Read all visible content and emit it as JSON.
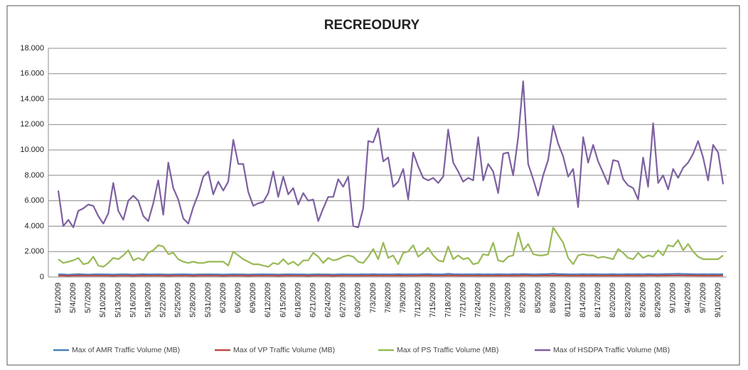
{
  "chart_data": {
    "type": "line",
    "title": "RECREODURY",
    "categories": [
      "5/1/2009",
      null,
      null,
      "5/4/2009",
      null,
      null,
      "5/7/2009",
      null,
      null,
      "5/10/2009",
      null,
      null,
      "5/13/2009",
      null,
      null,
      "5/16/2009",
      null,
      null,
      "5/19/2009",
      null,
      null,
      "5/22/2009",
      null,
      null,
      "5/25/2009",
      null,
      null,
      "5/28/2009",
      null,
      null,
      "5/31/2009",
      null,
      null,
      "6/3/2009",
      null,
      null,
      "6/6/2009",
      null,
      null,
      "6/9/2009",
      null,
      null,
      "6/12/2009",
      null,
      null,
      "6/15/2009",
      null,
      null,
      "6/18/2009",
      null,
      null,
      "6/21/2009",
      null,
      null,
      "6/24/2009",
      null,
      null,
      "6/27/2009",
      null,
      null,
      "6/30/2009",
      null,
      null,
      "7/3/2009",
      null,
      null,
      "7/6/2009",
      null,
      null,
      "7/9/2009",
      null,
      null,
      "7/12/2009",
      null,
      null,
      "7/15/2009",
      null,
      null,
      "7/18/2009",
      null,
      null,
      "7/21/2009",
      null,
      null,
      "7/24/2009",
      null,
      null,
      "7/27/2009",
      null,
      null,
      "7/30/2009",
      null,
      null,
      "8/2/2009",
      null,
      null,
      "8/5/2009",
      null,
      null,
      "8/8/2009",
      null,
      null,
      "8/11/2009",
      null,
      null,
      "8/14/2009",
      null,
      null,
      "8/17/2009",
      null,
      null,
      "8/20/2009",
      null,
      null,
      "8/23/2009",
      null,
      null,
      "8/26/2009",
      null,
      null,
      "8/29/2009",
      null,
      null,
      "9/1/2009",
      null,
      null,
      "9/4/2009",
      null,
      null,
      "9/7/2009",
      null,
      null,
      "9/10/2009",
      null
    ],
    "series": [
      {
        "name": "Max of AMR Traffic Volume (MB)",
        "color": "#4a7ebb",
        "values": [
          200,
          200,
          180,
          200,
          220,
          200,
          190,
          200,
          210,
          200,
          200,
          190,
          200,
          210,
          200,
          190,
          200,
          220,
          200,
          200,
          210,
          200,
          190,
          200,
          200,
          210,
          200,
          190,
          200,
          200,
          210,
          200,
          200,
          190,
          200,
          210,
          200,
          200,
          190,
          200,
          200,
          210,
          200,
          200,
          190,
          200,
          210,
          200,
          200,
          200,
          190,
          200,
          210,
          200,
          200,
          190,
          200,
          210,
          200,
          200,
          200,
          210,
          200,
          220,
          200,
          210,
          200,
          200,
          220,
          200,
          200,
          210,
          200,
          220,
          230,
          200,
          210,
          200,
          250,
          220,
          210,
          200,
          210,
          200,
          220,
          200,
          210,
          200,
          220,
          210,
          200,
          220,
          210,
          230,
          220,
          200,
          210,
          220,
          230,
          250,
          230,
          220,
          210,
          200,
          210,
          220,
          210,
          220,
          210,
          200,
          210,
          220,
          200,
          210,
          220,
          210,
          220,
          210,
          230,
          220,
          210,
          220,
          230,
          240,
          250,
          240,
          230,
          220,
          210,
          220,
          210,
          220,
          210,
          220
        ]
      },
      {
        "name": "Max of VP Traffic Volume (MB)",
        "color": "#be4b48",
        "values": [
          100,
          100,
          90,
          100,
          110,
          100,
          100,
          100,
          100,
          100,
          100,
          90,
          100,
          100,
          100,
          90,
          100,
          110,
          100,
          100,
          100,
          100,
          90,
          100,
          100,
          100,
          100,
          90,
          100,
          100,
          100,
          100,
          100,
          90,
          100,
          100,
          100,
          100,
          90,
          100,
          100,
          100,
          100,
          100,
          90,
          100,
          100,
          100,
          100,
          100,
          90,
          100,
          100,
          100,
          100,
          90,
          100,
          100,
          100,
          100,
          100,
          100,
          100,
          110,
          100,
          100,
          100,
          100,
          110,
          100,
          100,
          100,
          100,
          110,
          110,
          100,
          100,
          100,
          120,
          110,
          100,
          100,
          100,
          100,
          110,
          100,
          100,
          100,
          110,
          100,
          100,
          110,
          100,
          110,
          110,
          100,
          100,
          110,
          110,
          120,
          110,
          110,
          100,
          100,
          100,
          110,
          100,
          110,
          100,
          100,
          100,
          110,
          100,
          100,
          110,
          100,
          110,
          100,
          110,
          110,
          100,
          110,
          110,
          120,
          120,
          120,
          110,
          110,
          100,
          110,
          100,
          110,
          100,
          110
        ]
      },
      {
        "name": "Max of PS Traffic Volume (MB)",
        "color": "#98b954",
        "values": [
          1400,
          1100,
          1200,
          1300,
          1500,
          1000,
          1100,
          1600,
          900,
          800,
          1100,
          1500,
          1400,
          1700,
          2100,
          1300,
          1500,
          1300,
          1900,
          2100,
          2500,
          2400,
          1800,
          1900,
          1400,
          1200,
          1100,
          1200,
          1100,
          1100,
          1200,
          1200,
          1200,
          1200,
          900,
          2000,
          1700,
          1400,
          1200,
          1000,
          1000,
          900,
          800,
          1100,
          1000,
          1400,
          1000,
          1200,
          900,
          1300,
          1300,
          1900,
          1600,
          1100,
          1500,
          1300,
          1400,
          1600,
          1700,
          1600,
          1200,
          1100,
          1600,
          2200,
          1400,
          2700,
          1500,
          1700,
          1000,
          1900,
          2000,
          2500,
          1600,
          1900,
          2300,
          1700,
          1300,
          1200,
          2400,
          1400,
          1700,
          1400,
          1500,
          1000,
          1100,
          1800,
          1700,
          2700,
          1300,
          1200,
          1600,
          1700,
          3500,
          2100,
          2600,
          1800,
          1700,
          1700,
          1800,
          3900,
          3300,
          2700,
          1500,
          1000,
          1700,
          1800,
          1700,
          1700,
          1500,
          1600,
          1500,
          1400,
          2200,
          1900,
          1500,
          1400,
          1900,
          1500,
          1700,
          1600,
          2100,
          1700,
          2500,
          2400,
          2900,
          2100,
          2600,
          2000,
          1600,
          1400,
          1400,
          1400,
          1400,
          1700
        ]
      },
      {
        "name": "Max of HSDPA Traffic Volume (MB)",
        "color": "#7d60a0",
        "values": [
          6800,
          4000,
          4500,
          3900,
          5200,
          5400,
          5700,
          5600,
          4800,
          4200,
          5000,
          7400,
          5200,
          4500,
          6000,
          6400,
          6000,
          4800,
          4400,
          5800,
          7600,
          4900,
          9000,
          7000,
          6100,
          4600,
          4200,
          5500,
          6500,
          7900,
          8300,
          6500,
          7500,
          6800,
          7500,
          10800,
          8900,
          8900,
          6700,
          5600,
          5800,
          5900,
          6600,
          8300,
          6300,
          7900,
          6500,
          7000,
          5700,
          6600,
          6000,
          6100,
          4400,
          5400,
          6300,
          6300,
          7700,
          7100,
          7900,
          4000,
          3900,
          5400,
          10700,
          10600,
          11700,
          9100,
          9400,
          7100,
          7500,
          8500,
          6100,
          9800,
          8700,
          7800,
          7600,
          7800,
          7400,
          7900,
          11600,
          9000,
          8300,
          7500,
          7800,
          7600,
          11000,
          7600,
          8900,
          8300,
          6600,
          9700,
          9800,
          8000,
          11000,
          15400,
          8900,
          7700,
          6400,
          8000,
          9200,
          11900,
          10500,
          9500,
          7900,
          8500,
          5500,
          11000,
          9000,
          10400,
          9100,
          8200,
          7300,
          9200,
          9100,
          7700,
          7200,
          7000,
          6100,
          9400,
          7100,
          12100,
          7400,
          8000,
          6900,
          8500,
          7800,
          8600,
          9000,
          9700,
          10700,
          9400,
          7600,
          10400,
          9800,
          7300
        ]
      }
    ],
    "ylim": [
      0,
      18000
    ],
    "yticks": [
      0,
      {
        "value": 2000,
        "label": "2.000"
      },
      {
        "value": 4000,
        "label": "4.000"
      },
      {
        "value": 6000,
        "label": "6.000"
      },
      {
        "value": 8000,
        "label": "8.000"
      },
      {
        "value": 10000,
        "label": "10.000"
      },
      {
        "value": 12000,
        "label": "12.000"
      },
      {
        "value": 14000,
        "label": "14.000"
      },
      {
        "value": 16000,
        "label": "16.000"
      },
      {
        "value": 18000,
        "label": "18.000"
      }
    ],
    "grid": true
  }
}
